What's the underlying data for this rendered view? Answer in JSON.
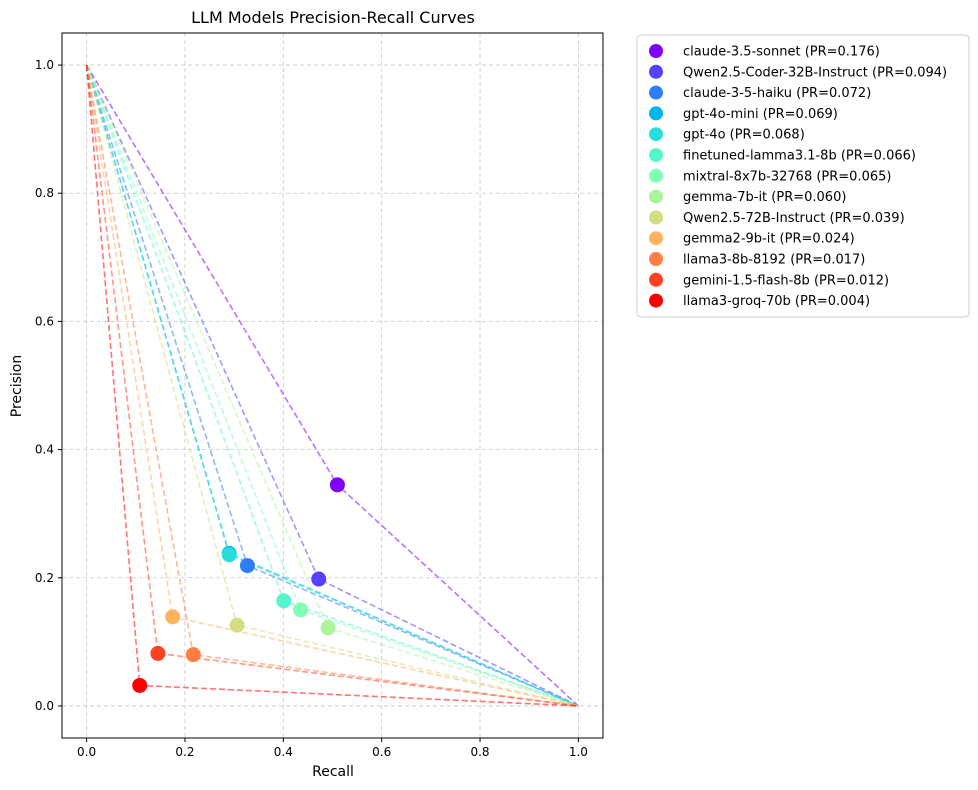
{
  "chart_data": {
    "type": "scatter",
    "title": "LLM Models Precision-Recall Curves",
    "xlabel": "Recall",
    "ylabel": "Precision",
    "xlim": [
      -0.05,
      1.05
    ],
    "ylim": [
      -0.05,
      1.05
    ],
    "xticks": [
      "0.0",
      "0.2",
      "0.4",
      "0.6",
      "0.8",
      "1.0"
    ],
    "yticks": [
      "0.0",
      "0.2",
      "0.4",
      "0.6",
      "0.8",
      "1.0"
    ],
    "grid": true,
    "legend_position": "outside-right",
    "series": [
      {
        "name": "claude-3.5-sonnet (PR=0.176)",
        "color": "#8000ff",
        "recall": 0.51,
        "precision": 0.345
      },
      {
        "name": "Qwen2.5-Coder-32B-Instruct (PR=0.094)",
        "color": "#5641fd",
        "recall": 0.472,
        "precision": 0.198
      },
      {
        "name": "claude-3-5-haiku (PR=0.072)",
        "color": "#2c7ef7",
        "recall": 0.327,
        "precision": 0.219
      },
      {
        "name": "gpt-4o-mini (PR=0.069)",
        "color": "#00b5eb",
        "recall": 0.29,
        "precision": 0.238
      },
      {
        "name": "gpt-4o (PR=0.068)",
        "color": "#2adddd",
        "recall": 0.29,
        "precision": 0.236
      },
      {
        "name": "finetuned-lamma3.1-8b (PR=0.066)",
        "color": "#54f6cb",
        "recall": 0.401,
        "precision": 0.164
      },
      {
        "name": "mixtral-8x7b-32768 (PR=0.065)",
        "color": "#80ffb4",
        "recall": 0.435,
        "precision": 0.15
      },
      {
        "name": "gemma-7b-it (PR=0.060)",
        "color": "#acf49c",
        "recall": 0.491,
        "precision": 0.122
      },
      {
        "name": "Qwen2.5-72B-Instruct (PR=0.039)",
        "color": "#d4dd80",
        "recall": 0.306,
        "precision": 0.126
      },
      {
        "name": "gemma2-9b-it (PR=0.024)",
        "color": "#ffb360",
        "recall": 0.175,
        "precision": 0.139
      },
      {
        "name": "llama3-8b-8192 (PR=0.017)",
        "color": "#ff7e41",
        "recall": 0.217,
        "precision": 0.08
      },
      {
        "name": "gemini-1.5-flash-8b (PR=0.012)",
        "color": "#ff4121",
        "recall": 0.145,
        "precision": 0.082
      },
      {
        "name": "llama3-groq-70b (PR=0.004)",
        "color": "#ff0000",
        "recall": 0.108,
        "precision": 0.032
      }
    ]
  }
}
